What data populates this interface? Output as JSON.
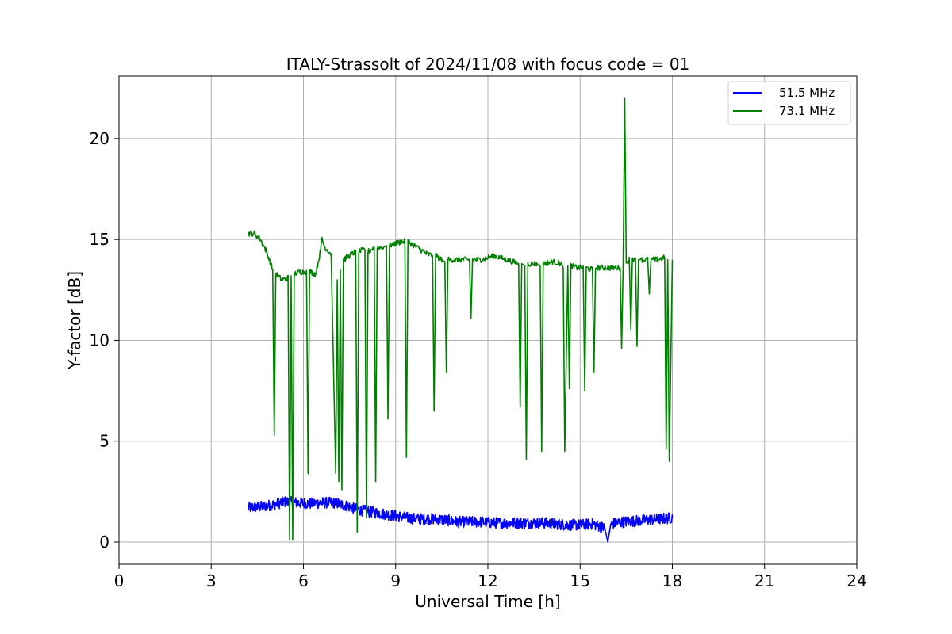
{
  "chart_data": {
    "type": "line",
    "title": "ITALY-Strassolt of 2024/11/08 with focus code = 01",
    "xlabel": "Universal Time [h]",
    "ylabel": "Y-factor [dB]",
    "xlim": [
      0,
      24
    ],
    "ylim": [
      -1.1,
      23.1
    ],
    "xticks": [
      0,
      3,
      6,
      9,
      12,
      15,
      18,
      21,
      24
    ],
    "yticks": [
      0,
      5,
      10,
      15,
      20
    ],
    "grid": true,
    "legend_position": "top-right",
    "series": [
      {
        "name": "51.5 MHz",
        "color": "#0000ff",
        "x": [
          4.2,
          4.6,
          5.0,
          5.4,
          5.8,
          6.2,
          6.6,
          7.0,
          7.4,
          7.8,
          8.2,
          8.6,
          9.0,
          9.4,
          9.8,
          10.2,
          10.6,
          11.0,
          11.4,
          11.8,
          12.2,
          12.6,
          13.0,
          13.4,
          13.8,
          14.2,
          14.6,
          15.0,
          15.4,
          15.8,
          15.9,
          16.0,
          16.4,
          16.8,
          17.2,
          17.6,
          18.0
        ],
        "y": [
          1.7,
          1.75,
          1.85,
          2.0,
          1.95,
          1.9,
          1.95,
          1.95,
          1.8,
          1.6,
          1.5,
          1.4,
          1.3,
          1.2,
          1.15,
          1.15,
          1.1,
          1.0,
          1.0,
          1.0,
          0.95,
          0.95,
          0.95,
          0.95,
          0.95,
          0.9,
          0.85,
          0.85,
          0.9,
          0.7,
          0.0,
          0.9,
          1.0,
          1.05,
          1.1,
          1.15,
          1.2
        ]
      },
      {
        "name": "73.1 MHz",
        "color": "#008000",
        "x": [
          4.2,
          4.4,
          4.6,
          4.8,
          5.0,
          5.05,
          5.1,
          5.3,
          5.5,
          5.55,
          5.6,
          5.65,
          5.7,
          5.9,
          6.1,
          6.15,
          6.2,
          6.4,
          6.55,
          6.6,
          6.7,
          6.9,
          7.05,
          7.1,
          7.15,
          7.2,
          7.25,
          7.3,
          7.4,
          7.6,
          7.7,
          7.75,
          7.8,
          8.0,
          8.05,
          8.1,
          8.3,
          8.35,
          8.4,
          8.6,
          8.7,
          8.75,
          8.8,
          9.0,
          9.2,
          9.3,
          9.35,
          9.4,
          9.6,
          9.8,
          10.0,
          10.2,
          10.25,
          10.3,
          10.5,
          10.6,
          10.65,
          10.7,
          11.0,
          11.4,
          11.45,
          11.5,
          11.8,
          12.2,
          12.6,
          13.0,
          13.05,
          13.1,
          13.2,
          13.25,
          13.3,
          13.6,
          13.7,
          13.75,
          13.8,
          14.1,
          14.4,
          14.45,
          14.5,
          14.6,
          14.65,
          14.7,
          14.9,
          15.1,
          15.15,
          15.2,
          15.4,
          15.45,
          15.5,
          15.8,
          16.0,
          16.3,
          16.35,
          16.4,
          16.45,
          16.5,
          16.6,
          16.65,
          16.7,
          16.8,
          16.85,
          16.9,
          16.95,
          17.0,
          17.2,
          17.25,
          17.3,
          17.5,
          17.75,
          17.8,
          17.85,
          17.9,
          18.0
        ],
        "y": [
          15.3,
          15.3,
          15.0,
          14.4,
          13.5,
          5.3,
          13.3,
          13.0,
          13.1,
          0.1,
          13.2,
          0.1,
          13.3,
          13.4,
          13.4,
          3.4,
          13.4,
          13.3,
          14.4,
          15.0,
          14.6,
          14.3,
          3.4,
          13.0,
          3.0,
          13.5,
          2.6,
          14.0,
          14.1,
          14.3,
          14.4,
          0.5,
          14.4,
          14.5,
          1.2,
          14.4,
          14.6,
          3.0,
          14.6,
          14.6,
          14.7,
          6.1,
          14.7,
          14.8,
          14.9,
          14.9,
          4.2,
          14.9,
          14.7,
          14.5,
          14.3,
          14.2,
          6.5,
          14.2,
          14.0,
          13.9,
          8.4,
          14.0,
          14.0,
          14.0,
          11.1,
          14.0,
          14.0,
          14.2,
          14.0,
          13.8,
          6.7,
          13.8,
          13.7,
          4.1,
          13.8,
          13.8,
          13.7,
          4.5,
          13.8,
          13.9,
          13.8,
          13.6,
          4.5,
          13.7,
          7.6,
          13.7,
          13.6,
          13.6,
          7.5,
          13.6,
          13.5,
          8.4,
          13.6,
          13.6,
          13.6,
          13.6,
          9.6,
          13.8,
          22.0,
          13.8,
          14.0,
          10.5,
          14.0,
          14.1,
          9.7,
          14.0,
          14.0,
          14.0,
          14.0,
          12.3,
          14.0,
          14.0,
          14.1,
          4.6,
          14.0,
          4.0,
          14.0
        ]
      }
    ]
  }
}
